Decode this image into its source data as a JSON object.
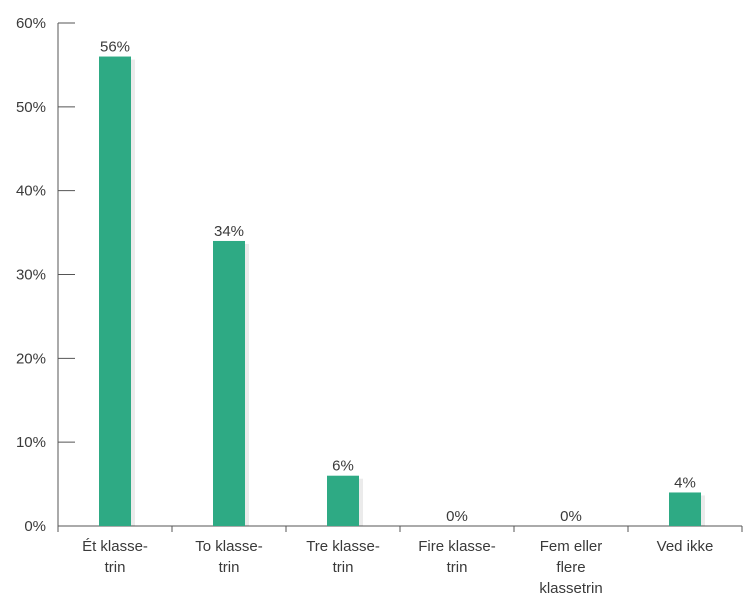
{
  "chart_data": {
    "type": "bar",
    "categories": [
      [
        "Ét klasse-",
        "trin"
      ],
      [
        "To klasse-",
        "trin"
      ],
      [
        "Tre klasse-",
        "trin"
      ],
      [
        "Fire klasse-",
        "trin"
      ],
      [
        "Fem eller",
        "flere",
        "klassetrin"
      ],
      [
        "Ved ikke"
      ]
    ],
    "values": [
      56,
      34,
      6,
      0,
      0,
      4
    ],
    "data_labels": [
      "56%",
      "34%",
      "6%",
      "0%",
      "0%",
      "4%"
    ],
    "ylim": [
      0,
      60
    ],
    "yticks": [
      0,
      10,
      20,
      30,
      40,
      50,
      60
    ],
    "ytick_labels": [
      "0%",
      "10%",
      "20%",
      "30%",
      "40%",
      "50%",
      "60%"
    ],
    "title": "",
    "xlabel": "",
    "ylabel": "",
    "grid": false,
    "legend": "none",
    "colors": {
      "bar": "#2eaa84",
      "axis": "#555555",
      "text": "#3a3a3a"
    }
  }
}
